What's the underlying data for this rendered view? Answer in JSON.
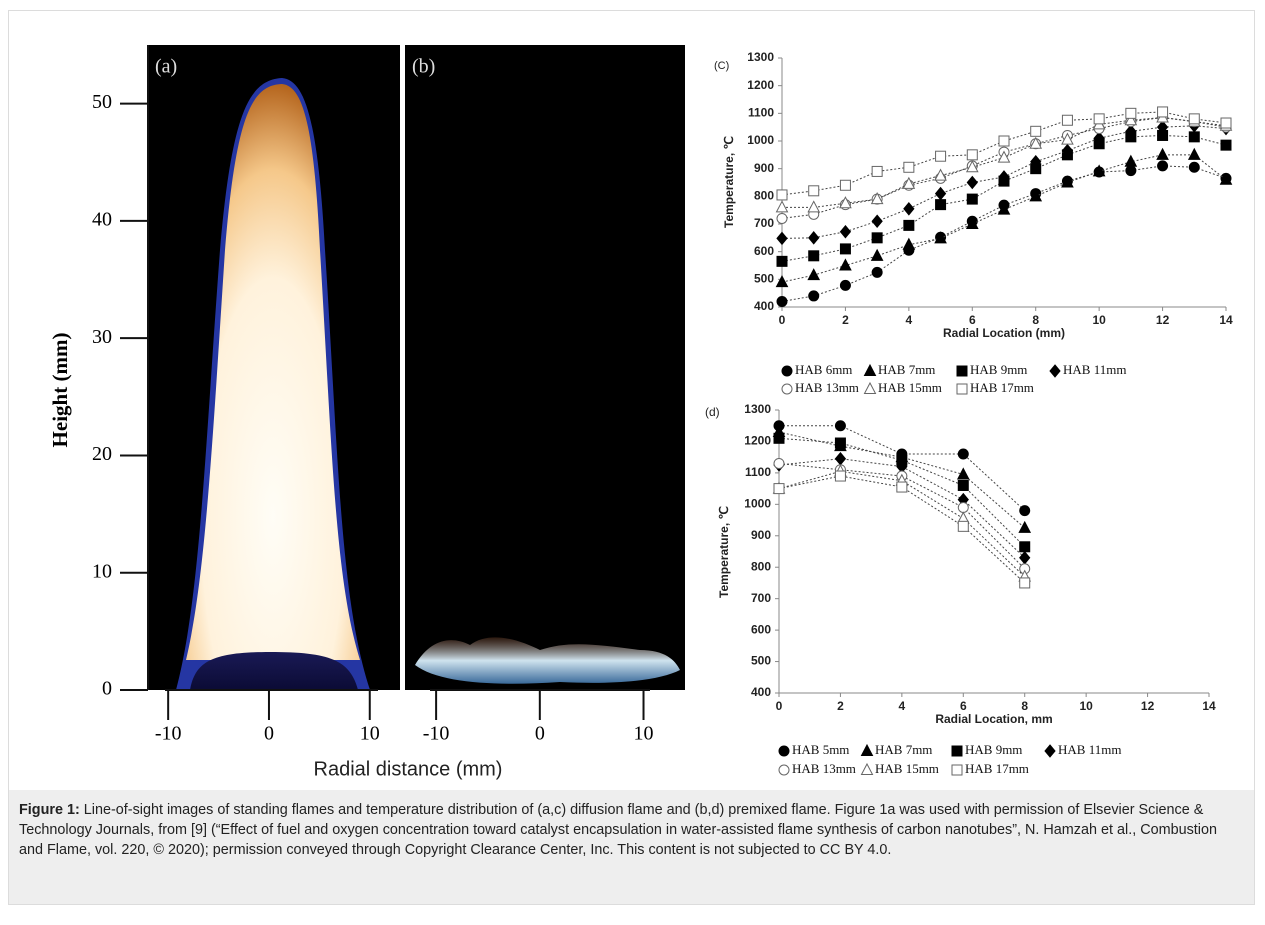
{
  "flame_images": {
    "ylabel": "Height (mm)",
    "xlabel": "Radial distance (mm)",
    "ylim": [
      0,
      55
    ],
    "yticks": [
      0,
      10,
      20,
      30,
      40,
      50
    ],
    "panels": [
      {
        "label": "(a)",
        "xlim": [
          -12,
          13
        ],
        "xticks": [
          -10,
          0,
          10
        ]
      },
      {
        "label": "(b)",
        "xlim": [
          -13,
          14
        ],
        "xticks": [
          -10,
          0,
          10
        ]
      }
    ]
  },
  "chart_data": [
    {
      "type": "line",
      "label": "(C)",
      "xlabel": "Radial Location (mm)",
      "ylabel": "Temperature, ℃",
      "x": [
        0,
        1,
        2,
        3,
        4,
        5,
        6,
        7,
        8,
        9,
        10,
        11,
        12,
        13,
        14
      ],
      "xlim": [
        0,
        14
      ],
      "xticks": [
        0,
        2,
        4,
        6,
        8,
        10,
        12,
        14
      ],
      "ylim": [
        400,
        1300
      ],
      "yticks": [
        400,
        500,
        600,
        700,
        800,
        900,
        1000,
        1100,
        1200,
        1300
      ],
      "series": [
        {
          "name": "HAB 6mm",
          "marker": "circle",
          "filled": true,
          "color": "#000000",
          "values": [
            420,
            440,
            478,
            525,
            605,
            652,
            710,
            768,
            810,
            855,
            888,
            893,
            910,
            905,
            865
          ]
        },
        {
          "name": "HAB 7mm",
          "marker": "triangle",
          "filled": true,
          "color": "#000000",
          "values": [
            490,
            515,
            550,
            585,
            625,
            648,
            700,
            752,
            800,
            850,
            890,
            925,
            950,
            950,
            860
          ]
        },
        {
          "name": "HAB 9mm",
          "marker": "square",
          "filled": true,
          "color": "#000000",
          "values": [
            565,
            585,
            610,
            650,
            695,
            770,
            790,
            855,
            900,
            950,
            990,
            1015,
            1020,
            1015,
            985
          ]
        },
        {
          "name": "HAB 11mm",
          "marker": "diamond",
          "filled": true,
          "color": "#000000",
          "values": [
            648,
            650,
            672,
            710,
            755,
            810,
            850,
            870,
            925,
            965,
            1010,
            1035,
            1050,
            1055,
            1045
          ]
        },
        {
          "name": "HAB 13mm",
          "marker": "circle",
          "filled": false,
          "color": "#666666",
          "values": [
            720,
            735,
            770,
            790,
            840,
            865,
            910,
            960,
            990,
            1020,
            1045,
            1070,
            1085,
            1070,
            1050
          ]
        },
        {
          "name": "HAB 15mm",
          "marker": "triangle",
          "filled": false,
          "color": "#666666",
          "values": [
            760,
            760,
            775,
            790,
            845,
            875,
            905,
            940,
            990,
            1005,
            1060,
            1075,
            1085,
            1070,
            1055
          ]
        },
        {
          "name": "HAB 17mm",
          "marker": "square",
          "filled": false,
          "color": "#666666",
          "values": [
            805,
            820,
            840,
            890,
            905,
            945,
            950,
            1000,
            1035,
            1075,
            1080,
            1100,
            1105,
            1080,
            1065
          ]
        }
      ]
    },
    {
      "type": "line",
      "label": "(d)",
      "xlabel": "Radial Location, mm",
      "ylabel": "Temperature, ℃",
      "x": [
        0,
        2,
        4,
        6,
        8
      ],
      "xlim": [
        0,
        14
      ],
      "xticks": [
        0,
        2,
        4,
        6,
        8,
        10,
        12,
        14
      ],
      "ylim": [
        400,
        1300
      ],
      "yticks": [
        400,
        500,
        600,
        700,
        800,
        900,
        1000,
        1100,
        1200,
        1300
      ],
      "series": [
        {
          "name": "HAB 5mm",
          "marker": "circle",
          "filled": true,
          "color": "#000000",
          "values": [
            1250,
            1250,
            1160,
            1160,
            980
          ]
        },
        {
          "name": "HAB 7mm",
          "marker": "triangle",
          "filled": true,
          "color": "#000000",
          "values": [
            1230,
            1185,
            1150,
            1095,
            925
          ]
        },
        {
          "name": "HAB 9mm",
          "marker": "square",
          "filled": true,
          "color": "#000000",
          "values": [
            1210,
            1195,
            1140,
            1060,
            865
          ]
        },
        {
          "name": "HAB 11mm",
          "marker": "diamond",
          "filled": true,
          "color": "#000000",
          "values": [
            1125,
            1145,
            1120,
            1015,
            830
          ]
        },
        {
          "name": "HAB 13mm",
          "marker": "circle",
          "filled": false,
          "color": "#666666",
          "values": [
            1130,
            1110,
            1090,
            990,
            795
          ]
        },
        {
          "name": "HAB 15mm",
          "marker": "triangle",
          "filled": false,
          "color": "#666666",
          "values": [
            1050,
            1105,
            1075,
            955,
            770
          ]
        },
        {
          "name": "HAB 17mm",
          "marker": "square",
          "filled": false,
          "color": "#666666",
          "values": [
            1050,
            1090,
            1055,
            930,
            750
          ]
        }
      ]
    }
  ],
  "caption": {
    "label": "Figure 1:",
    "text": "Line-of-sight images of standing flames and temperature distribution of (a,c) diffusion flame and (b,d) premixed flame. Figure 1a was used with permission of Elsevier Science & Technology Journals, from [9] (“Effect of fuel and oxygen concentration toward catalyst encapsulation in water-assisted flame synthesis of carbon nanotubes”, N. Hamzah et al., Combustion and Flame, vol. 220, © 2020); permission conveyed through Copyright Clearance Center, Inc. This content is not subjected to CC BY 4.0."
  }
}
